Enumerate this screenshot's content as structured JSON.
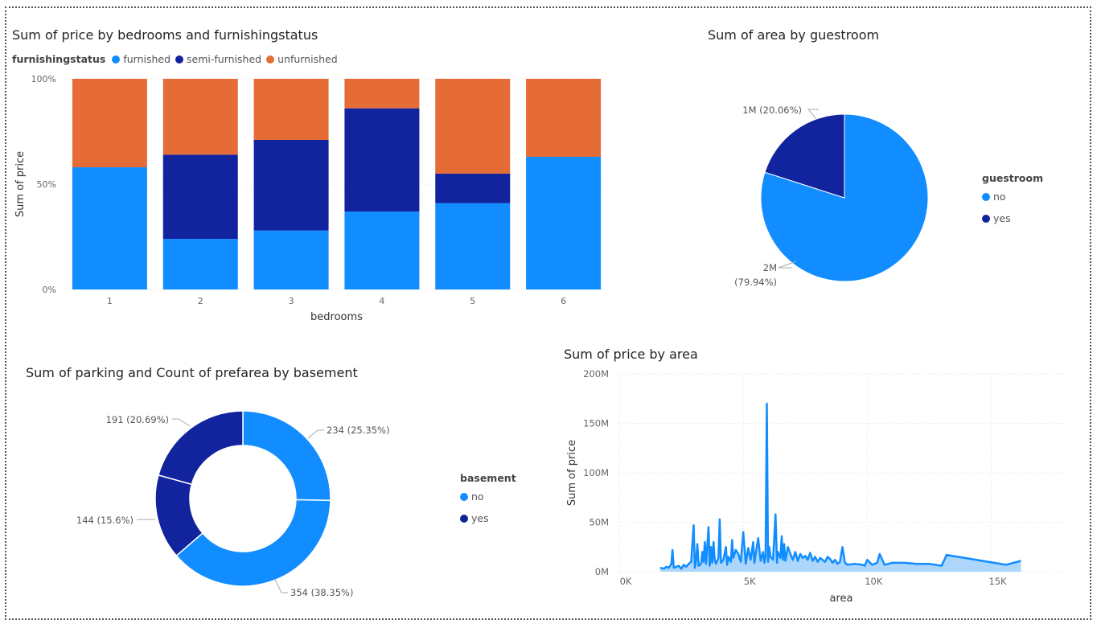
{
  "colors": {
    "furnished": "#118DFF",
    "semi_furnished": "#12239E",
    "unfunished": "#E66C37",
    "no": "#118DFF",
    "yes": "#12239E",
    "area_fill": "#9ECFFB"
  },
  "chart_data": [
    {
      "type": "bar",
      "stacked": "100%",
      "title": "Sum of price by bedrooms and furnishingstatus",
      "legend_title": "furnishingstatus",
      "xlabel": "bedrooms",
      "ylabel": "Sum of price",
      "y_ticks": [
        "0%",
        "50%",
        "100%"
      ],
      "categories": [
        "1",
        "2",
        "3",
        "4",
        "5",
        "6"
      ],
      "series": [
        {
          "name": "furnished",
          "values": [
            58,
            24,
            28,
            37,
            41,
            63
          ]
        },
        {
          "name": "semi-furnished",
          "values": [
            0,
            40,
            43,
            49,
            14,
            0
          ]
        },
        {
          "name": "unfurnished",
          "values": [
            42,
            36,
            29,
            14,
            45,
            37
          ]
        }
      ]
    },
    {
      "type": "pie",
      "title": "Sum of area by guestroom",
      "legend_title": "guestroom",
      "slices": [
        {
          "name": "no",
          "value": 79.94,
          "label": "2M",
          "label2": "(79.94%)"
        },
        {
          "name": "yes",
          "value": 20.06,
          "label": "1M (20.06%)"
        }
      ]
    },
    {
      "type": "pie",
      "donut": true,
      "title": "Sum of parking and Count of prefarea by basement",
      "legend_title": "basement",
      "slices": [
        {
          "name": "no",
          "value": 25.35,
          "label": "234 (25.35%)"
        },
        {
          "name": "no",
          "value": 38.35,
          "label": "354 (38.35%)"
        },
        {
          "name": "yes",
          "value": 15.6,
          "label": "144 (15.6%)"
        },
        {
          "name": "yes",
          "value": 20.69,
          "label": "191 (20.69%)"
        }
      ]
    },
    {
      "type": "area",
      "title": "Sum of price by area",
      "xlabel": "area",
      "ylabel": "Sum of price",
      "x_ticks": [
        "0K",
        "5K",
        "10K",
        "15K"
      ],
      "y_ticks": [
        "0M",
        "50M",
        "100M",
        "150M",
        "200M"
      ],
      "xlim": [
        0,
        18000
      ],
      "ylim": [
        0,
        200
      ],
      "x": [
        1650,
        1800,
        1900,
        2000,
        2100,
        2145,
        2200,
        2300,
        2400,
        2500,
        2600,
        2700,
        2800,
        2900,
        3000,
        3050,
        3100,
        3150,
        3200,
        3300,
        3350,
        3400,
        3450,
        3500,
        3600,
        3650,
        3700,
        3750,
        3800,
        3850,
        3900,
        4000,
        4050,
        4100,
        4200,
        4300,
        4350,
        4400,
        4500,
        4550,
        4600,
        4700,
        4800,
        4900,
        5000,
        5100,
        5200,
        5300,
        5400,
        5450,
        5500,
        5600,
        5700,
        5800,
        5850,
        5900,
        5950,
        6000,
        6050,
        6100,
        6200,
        6300,
        6360,
        6400,
        6500,
        6550,
        6600,
        6650,
        6700,
        6800,
        6900,
        7000,
        7100,
        7200,
        7300,
        7400,
        7500,
        7600,
        7700,
        7800,
        7900,
        8000,
        8100,
        8200,
        8300,
        8400,
        8500,
        8600,
        8700,
        8800,
        8900,
        9000,
        9100,
        9200,
        9500,
        9800,
        9900,
        10000,
        10200,
        10400,
        10500,
        10700,
        11000,
        11500,
        12000,
        12500,
        13000,
        13200,
        15600,
        16200
      ],
      "y": [
        4,
        3,
        5,
        4,
        8,
        22,
        4,
        5,
        6,
        3,
        7,
        5,
        8,
        10,
        47,
        4,
        12,
        28,
        6,
        8,
        20,
        10,
        30,
        8,
        45,
        6,
        25,
        9,
        30,
        12,
        8,
        14,
        53,
        9,
        12,
        25,
        7,
        15,
        10,
        32,
        14,
        22,
        18,
        10,
        40,
        8,
        24,
        12,
        30,
        9,
        18,
        34,
        11,
        20,
        9,
        15,
        170,
        10,
        25,
        15,
        12,
        58,
        9,
        20,
        14,
        36,
        12,
        28,
        11,
        25,
        18,
        12,
        20,
        11,
        18,
        14,
        16,
        12,
        19,
        11,
        15,
        10,
        14,
        12,
        10,
        15,
        13,
        9,
        12,
        8,
        10,
        25,
        9,
        7,
        8,
        7,
        6,
        12,
        7,
        9,
        18,
        7,
        9,
        9,
        8,
        8,
        6,
        17,
        7,
        11
      ]
    }
  ]
}
